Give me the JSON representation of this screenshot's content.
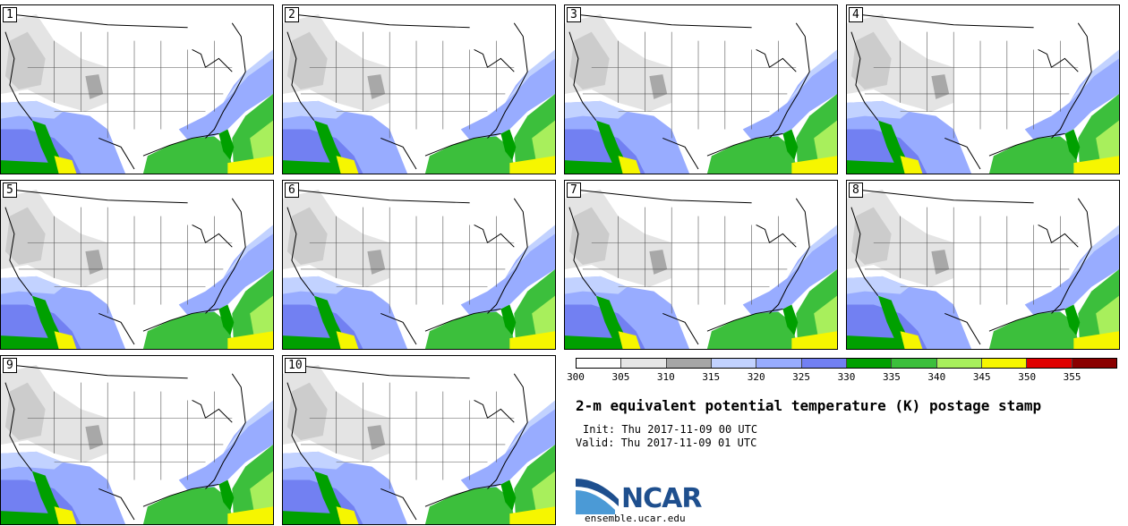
{
  "panels": [
    {
      "label": "1"
    },
    {
      "label": "2"
    },
    {
      "label": "3"
    },
    {
      "label": "4"
    },
    {
      "label": "5"
    },
    {
      "label": "6"
    },
    {
      "label": "7"
    },
    {
      "label": "8"
    },
    {
      "label": "9"
    },
    {
      "label": "10"
    }
  ],
  "legend": {
    "ticks": [
      "300",
      "305",
      "310",
      "315",
      "320",
      "325",
      "330",
      "335",
      "340",
      "345",
      "350",
      "355"
    ],
    "colors": [
      "#ffffff",
      "#e6e6e6",
      "#a6a6a6",
      "#c2d2ff",
      "#98acff",
      "#7280f2",
      "#00a000",
      "#3cbf3c",
      "#a8ef5c",
      "#f6f600",
      "#e00000",
      "#8a0000"
    ]
  },
  "title": "2-m equivalent potential temperature (K) postage stamp",
  "init": "Init: Thu 2017-11-09 00 UTC",
  "valid": "Valid: Thu 2017-11-09 01 UTC",
  "logo_text": "NCAR",
  "site": "ensemble.ucar.edu"
}
